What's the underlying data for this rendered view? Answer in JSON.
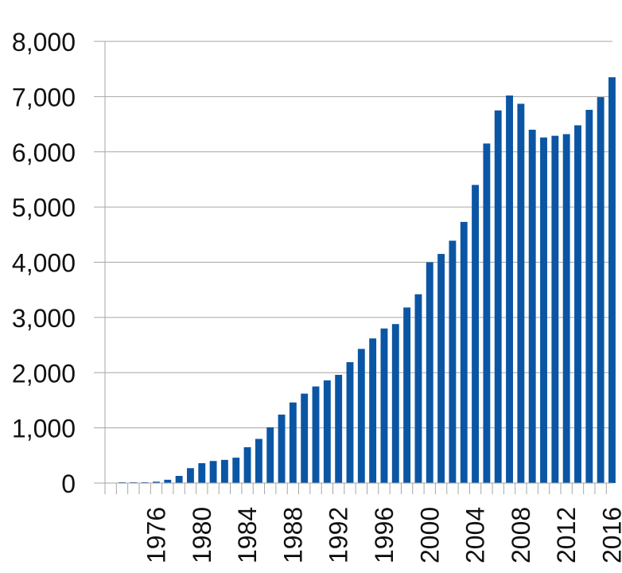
{
  "chart_data": {
    "type": "bar",
    "title": "",
    "xlabel": "",
    "ylabel": "",
    "ylim": [
      0,
      8000
    ],
    "yticks": [
      0,
      1000,
      2000,
      3000,
      4000,
      5000,
      6000,
      7000,
      8000
    ],
    "ytick_labels": [
      "0",
      "1,000",
      "2,000",
      "3,000",
      "4,000",
      "5,000",
      "6,000",
      "7,000",
      "8,000"
    ],
    "grid": true,
    "legend": "none",
    "bar_color": "#0b56a4",
    "categories": [
      "1972",
      "1973",
      "1974",
      "1975",
      "1976",
      "1977",
      "1978",
      "1979",
      "1980",
      "1981",
      "1982",
      "1983",
      "1984",
      "1985",
      "1986",
      "1987",
      "1988",
      "1989",
      "1990",
      "1991",
      "1992",
      "1993",
      "1994",
      "1995",
      "1996",
      "1997",
      "1998",
      "1999",
      "2000",
      "2001",
      "2002",
      "2003",
      "2004",
      "2005",
      "2006",
      "2007",
      "2008",
      "2009",
      "2010",
      "2011",
      "2012",
      "2013",
      "2014",
      "2015",
      "2016"
    ],
    "xtick_labels": [
      "1976",
      "1980",
      "1984",
      "1988",
      "1992",
      "1996",
      "2000",
      "2004",
      "2008",
      "2012",
      "2016"
    ],
    "values": [
      0,
      10,
      12,
      15,
      25,
      60,
      130,
      270,
      360,
      400,
      420,
      460,
      650,
      800,
      1010,
      1240,
      1460,
      1620,
      1750,
      1860,
      1960,
      2190,
      2430,
      2620,
      2800,
      2880,
      3180,
      3420,
      4000,
      4150,
      4390,
      4730,
      5400,
      6150,
      6750,
      7020,
      6870,
      6400,
      6260,
      6290,
      6320,
      6480,
      6760,
      6990,
      7350
    ]
  }
}
